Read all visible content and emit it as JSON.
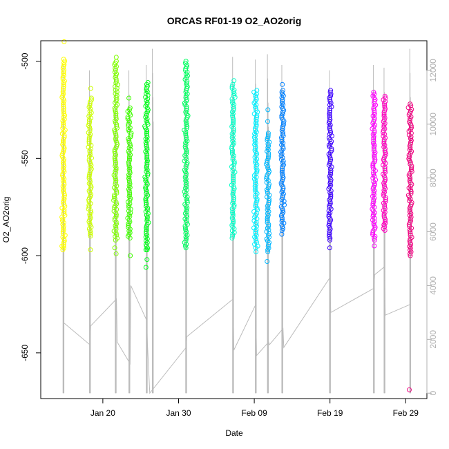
{
  "chart_data": {
    "type": "scatter",
    "title": "ORCAS RF01-19 O2_AO2orig",
    "xlabel": "Date",
    "ylabel": "O2_AO2orig",
    "x_ticks": [
      {
        "label": "Jan 20",
        "day": 20
      },
      {
        "label": "Jan 30",
        "day": 30
      },
      {
        "label": "Feb 09",
        "day": 40
      },
      {
        "label": "Feb 19",
        "day": 50
      },
      {
        "label": "Feb 29",
        "day": 60
      }
    ],
    "xlim": [
      11.8,
      62.8
    ],
    "y_ticks": [
      -500,
      -550,
      -600,
      -650
    ],
    "ylim": [
      -673.5,
      -489.5
    ],
    "y2_ticks": [
      0,
      2000,
      4000,
      6000,
      8000,
      10000,
      12000
    ],
    "y2lim": [
      -200,
      13100
    ],
    "grid": false,
    "flights": [
      {
        "day": 14.8,
        "y_min": -597,
        "y_max": -499,
        "outliers": [
          -490,
          -595
        ],
        "color": "#ffff00"
      },
      {
        "day": 18.3,
        "y_min": -590,
        "y_max": -519,
        "outliers": [
          -514,
          -597
        ],
        "color": "#ccff00"
      },
      {
        "day": 21.7,
        "y_min": -592,
        "y_max": -500,
        "outliers": [
          -498,
          -599,
          -596
        ],
        "color": "#80ff00"
      },
      {
        "day": 23.5,
        "y_min": -591,
        "y_max": -524,
        "outliers": [
          -519,
          -600
        ],
        "color": "#40ff00"
      },
      {
        "day": 25.8,
        "y_min": -597,
        "y_max": -511,
        "outliers": [
          -606,
          -602,
          -597
        ],
        "color": "#00ff1a"
      },
      {
        "day": 31.0,
        "y_min": -596,
        "y_max": -501,
        "outliers": [
          -500
        ],
        "color": "#00ff60"
      },
      {
        "day": 37.2,
        "y_min": -590,
        "y_max": -512,
        "outliers": [
          -510,
          -591
        ],
        "color": "#00ffc8"
      },
      {
        "day": 40.2,
        "y_min": -596,
        "y_max": -515,
        "outliers": [
          -598
        ],
        "color": "#00f0ff"
      },
      {
        "day": 41.8,
        "y_min": -598,
        "y_max": -537,
        "outliers": [
          -525,
          -531,
          -603
        ],
        "color": "#00b8ff"
      },
      {
        "day": 43.7,
        "y_min": -587,
        "y_max": -515,
        "outliers": [
          -512,
          -589
        ],
        "color": "#0080ff"
      },
      {
        "day": 50.0,
        "y_min": -592,
        "y_max": -515,
        "outliers": [
          -596
        ],
        "color": "#3c00ff"
      },
      {
        "day": 55.8,
        "y_min": -592,
        "y_max": -516,
        "outliers": [
          -595
        ],
        "color": "#ff00ff"
      },
      {
        "day": 57.2,
        "y_min": -587,
        "y_max": -518,
        "outliers": [
          -584
        ],
        "color": "#ff00c0"
      },
      {
        "day": 60.6,
        "y_min": -599,
        "y_max": -522,
        "outliers": [
          -669,
          -600
        ],
        "color": "#f00080"
      }
    ],
    "line_series": {
      "color": "#bbbbbb",
      "spikes": [
        {
          "day": 14.8,
          "top": 12200
        },
        {
          "day": 18.3,
          "top": 12000
        },
        {
          "day": 21.7,
          "top": 12200
        },
        {
          "day": 23.5,
          "top": 12000
        },
        {
          "day": 25.8,
          "top": 12200
        },
        {
          "day": 26.6,
          "top": 12800
        },
        {
          "day": 31.0,
          "top": 12000
        },
        {
          "day": 37.2,
          "top": 12500
        },
        {
          "day": 40.2,
          "top": 12400
        },
        {
          "day": 41.8,
          "top": 12600
        },
        {
          "day": 43.7,
          "top": 12200
        },
        {
          "day": 50.0,
          "top": 12000
        },
        {
          "day": 55.8,
          "top": 12200
        },
        {
          "day": 57.2,
          "top": 12100
        },
        {
          "day": 60.6,
          "top": 12800
        }
      ],
      "path": [
        [
          14.9,
          2600
        ],
        [
          18.3,
          1800
        ],
        [
          18.4,
          2500
        ],
        [
          21.8,
          3500
        ],
        [
          21.9,
          1900
        ],
        [
          23.6,
          1100
        ],
        [
          23.7,
          4000
        ],
        [
          25.8,
          2700
        ],
        [
          25.9,
          1800
        ],
        [
          26.2,
          0
        ],
        [
          31.0,
          1700
        ],
        [
          31.1,
          2100
        ],
        [
          37.2,
          3500
        ],
        [
          37.3,
          1600
        ],
        [
          40.2,
          3300
        ],
        [
          40.3,
          1400
        ],
        [
          41.9,
          1900
        ],
        [
          42.0,
          1800
        ],
        [
          43.8,
          2400
        ],
        [
          43.9,
          1700
        ],
        [
          50.0,
          4300
        ],
        [
          50.1,
          3000
        ],
        [
          55.8,
          3900
        ],
        [
          55.9,
          4400
        ],
        [
          57.2,
          4700
        ],
        [
          57.3,
          2900
        ],
        [
          60.6,
          3300
        ]
      ]
    }
  }
}
